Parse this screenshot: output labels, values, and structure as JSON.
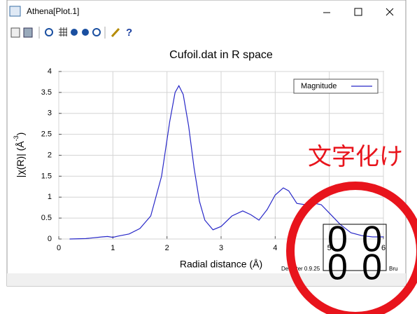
{
  "window": {
    "title": "Athena[Plot.1]"
  },
  "chart_data": {
    "type": "line",
    "title": "Cufoil.dat in R space",
    "xlabel": "Radial distance  (Å)",
    "ylabel": "|χ(R)|  (Å",
    "ylabel_sup": "-3",
    "ylabel_end": ")",
    "x": [
      0.2,
      0.5,
      0.8,
      0.9,
      1.0,
      1.1,
      1.3,
      1.5,
      1.7,
      1.9,
      2.05,
      2.15,
      2.22,
      2.3,
      2.4,
      2.5,
      2.6,
      2.7,
      2.85,
      3.0,
      3.2,
      3.4,
      3.55,
      3.7,
      3.85,
      4.0,
      4.15,
      4.25,
      4.4,
      4.55,
      4.7,
      4.85,
      5.0,
      5.2,
      5.4,
      5.6,
      5.8,
      6.0
    ],
    "series": [
      {
        "name": "Magnitude",
        "color": "#2828c8",
        "values": [
          0.0,
          0.01,
          0.05,
          0.06,
          0.04,
          0.07,
          0.12,
          0.25,
          0.55,
          1.5,
          2.8,
          3.5,
          3.66,
          3.45,
          2.7,
          1.7,
          0.9,
          0.45,
          0.22,
          0.3,
          0.55,
          0.67,
          0.58,
          0.45,
          0.7,
          1.05,
          1.22,
          1.15,
          0.85,
          0.82,
          0.86,
          0.82,
          0.62,
          0.35,
          0.15,
          0.08,
          0.05,
          0.05
        ]
      }
    ],
    "xlim": [
      0,
      6
    ],
    "xticks": [
      0,
      1,
      2,
      3,
      4,
      5,
      6
    ],
    "ylim": [
      0,
      4
    ],
    "yticks": [
      0,
      0.5,
      1,
      1.5,
      2,
      2.5,
      3,
      3.5,
      4
    ],
    "grid": true,
    "legend": "upper right"
  },
  "footer": {
    "left": "Demeter 0.9.25",
    "right": "Bru"
  },
  "annotation": {
    "text": "文字化け",
    "glyphs": [
      "00",
      "00"
    ]
  }
}
